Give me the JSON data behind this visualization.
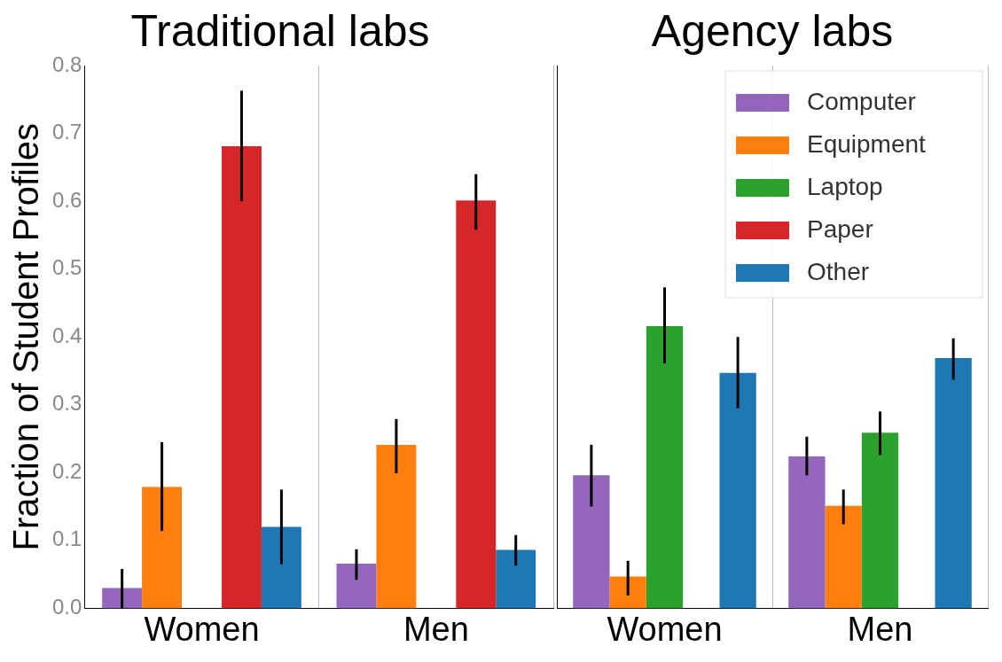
{
  "chart_data": [
    {
      "type": "bar",
      "title": "Traditional labs",
      "ylabel": "Fraction of Student Profiles",
      "categories": [
        "Women",
        "Men"
      ],
      "ylim": [
        0,
        0.8
      ],
      "yticks": [
        {
          "value": 0,
          "label": "0.0"
        },
        0.1,
        0.2,
        0.3,
        0.4,
        0.5,
        0.6,
        0.7,
        0.8
      ],
      "grid": "x",
      "legend": false,
      "series": [
        {
          "color": "#9467bd",
          "values": [
            0.03,
            0.066
          ],
          "errors": [
            [
              0.0,
              0.058
            ],
            [
              0.042,
              0.087
            ]
          ]
        },
        {
          "color": "#ff7f0e",
          "values": [
            0.179,
            0.241
          ],
          "errors": [
            [
              0.114,
              0.245
            ],
            [
              0.199,
              0.279
            ]
          ]
        },
        {
          "color": "#2ca02c",
          "values": [
            null,
            null
          ],
          "errors": [
            null,
            null
          ]
        },
        {
          "color": "#d62728",
          "values": [
            0.681,
            0.601
          ],
          "errors": [
            [
              0.6,
              0.763
            ],
            [
              0.558,
              0.64
            ]
          ]
        },
        {
          "color": "#1f77b4",
          "values": [
            0.12,
            0.086
          ],
          "errors": [
            [
              0.065,
              0.175
            ],
            [
              0.063,
              0.108
            ]
          ]
        }
      ]
    },
    {
      "type": "bar",
      "title": "Agency labs",
      "categories": [
        "Women",
        "Men"
      ],
      "ylim": [
        0,
        0.8
      ],
      "yticks": [
        0,
        0.1,
        0.2,
        0.3,
        0.4,
        0.5,
        0.6,
        0.7,
        0.8
      ],
      "grid": "x",
      "legend": "top right",
      "tick_labels": "x",
      "series": [
        {
          "name": "Computer",
          "color": "#9467bd",
          "values": [
            0.196,
            0.224
          ],
          "errors": [
            [
              0.15,
              0.241
            ],
            [
              0.196,
              0.253
            ]
          ]
        },
        {
          "name": "Equipment",
          "color": "#ff7f0e",
          "values": [
            0.047,
            0.151
          ],
          "errors": [
            [
              0.019,
              0.07
            ],
            [
              0.124,
              0.175
            ]
          ]
        },
        {
          "name": "Laptop",
          "color": "#2ca02c",
          "values": [
            0.416,
            0.259
          ],
          "errors": [
            [
              0.361,
              0.473
            ],
            [
              0.226,
              0.29
            ]
          ]
        },
        {
          "name": "Paper",
          "color": "#d62728",
          "values": [
            null,
            null
          ],
          "errors": [
            null,
            null
          ]
        },
        {
          "name": "Other",
          "color": "#1f77b4",
          "values": [
            0.347,
            0.369
          ],
          "errors": [
            [
              0.295,
              0.4
            ],
            [
              0.337,
              0.398
            ]
          ]
        }
      ]
    }
  ]
}
